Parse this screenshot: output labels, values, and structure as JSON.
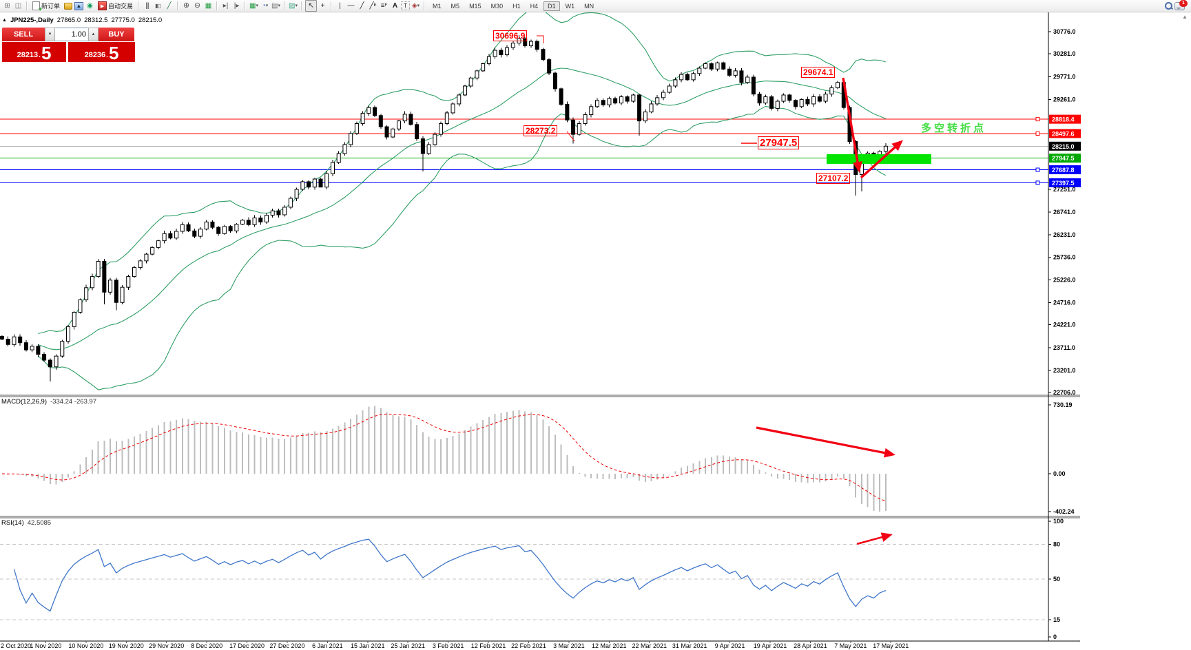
{
  "toolbar": {
    "new_order_label": "新订单",
    "auto_trading_label": "自动交易",
    "timeframes": [
      "M1",
      "M5",
      "M15",
      "M30",
      "H1",
      "H4",
      "D1",
      "W1",
      "MN"
    ],
    "active_timeframe": "D1",
    "notification_count": "1"
  },
  "symbol_header": {
    "symbol": "JPN225-,Daily",
    "open": "27865.0",
    "high": "28312.5",
    "low": "27775.0",
    "close": "28215.0"
  },
  "trade_panel": {
    "sell_label": "SELL",
    "buy_label": "BUY",
    "volume": "1.00",
    "sell_price_main": "28213",
    "sell_price_pip": "5",
    "buy_price_main": "28236",
    "buy_price_pip": "5",
    "decimal": "."
  },
  "annotations": {
    "peak": {
      "text": "30696.9"
    },
    "swing_high": {
      "text": "29674.1"
    },
    "pullback_low": {
      "text": "28273.2"
    },
    "support": {
      "text": "27947.5"
    },
    "crash_low": {
      "text": "27107.2"
    },
    "zone_text": {
      "text": "多空转折点",
      "color": "#44dd44"
    },
    "zone_band": {
      "color": "#00e400",
      "price_top": 28035,
      "price_bottom": 27820
    }
  },
  "macd": {
    "name": "MACD(12,26,9)",
    "values": "-334.24 -263.97",
    "axis_ticks": [
      {
        "label": "730.19",
        "value": 730.19
      },
      {
        "label": "0.00",
        "value": 0
      },
      {
        "label": "-402.24",
        "value": -402.24
      }
    ]
  },
  "rsi": {
    "name": "RSI(14)",
    "value": "42.5085",
    "axis_ticks": [
      {
        "label": "100",
        "value": 100
      },
      {
        "label": "80",
        "value": 80
      },
      {
        "label": "50",
        "value": 50
      },
      {
        "label": "15",
        "value": 15
      },
      {
        "label": "0",
        "value": 0
      }
    ],
    "level_lines": [
      80,
      50,
      15
    ]
  },
  "chart_data": {
    "type": "candlestick",
    "symbol": "JPN225-",
    "timeframe": "Daily",
    "ohlc_display": {
      "open": 27865.0,
      "high": 28312.5,
      "low": 27775.0,
      "close": 28215.0
    },
    "price_axis_ticks": [
      "30776.0",
      "30281.0",
      "29771.0",
      "29261.0",
      "27251.0",
      "26741.0",
      "26231.0",
      "25736.0",
      "25226.0",
      "24716.0",
      "24221.0",
      "23711.0",
      "23201.0",
      "22706.0"
    ],
    "levels": [
      {
        "value": 28818.4,
        "label": "28818.4",
        "line_color": "#ff0000",
        "badge_color": "#ff0000",
        "handle": true
      },
      {
        "value": 28497.6,
        "label": "28497.6",
        "line_color": "#ff0000",
        "badge_color": "#ff0000",
        "handle": true
      },
      {
        "value": 28215.0,
        "label": "28215.0",
        "line_color": "#b4b4b4",
        "badge_color": "#000000",
        "handle": false,
        "type": "current-price"
      },
      {
        "value": 27947.5,
        "label": "27947.5",
        "line_color": "#00a800",
        "badge_color": "#00a800",
        "handle": false
      },
      {
        "value": 27687.8,
        "label": "27687.8",
        "line_color": "#0000ff",
        "badge_color": "#0000ff",
        "handle": true
      },
      {
        "value": 27397.5,
        "label": "27397.5",
        "line_color": "#0000ff",
        "badge_color": "#0000ff",
        "handle": true
      }
    ],
    "date_labels": [
      "2 Oct 2020",
      "1 Nov 2020",
      "10 Nov 2020",
      "19 Nov 2020",
      "29 Nov 2020",
      "8 Dec 2020",
      "17 Dec 2020",
      "27 Dec 2020",
      "6 Jan 2021",
      "15 Jan 2021",
      "25 Jan 2021",
      "3 Feb 2021",
      "12 Feb 2021",
      "22 Feb 2021",
      "3 Mar 2021",
      "12 Mar 2021",
      "22 Mar 2021",
      "31 Mar 2021",
      "9 Apr 2021",
      "19 Apr 2021",
      "28 Apr 2021",
      "7 May 2021",
      "17 May 2021"
    ],
    "bollinger": {
      "period": 20,
      "deviation": 2,
      "color": "#2e9e64"
    },
    "closes": [
      23900,
      23780,
      23950,
      23820,
      23660,
      23740,
      23560,
      23430,
      23280,
      23520,
      23850,
      24180,
      24500,
      24780,
      25050,
      25300,
      25640,
      24950,
      25220,
      24720,
      25060,
      25300,
      25500,
      25650,
      25800,
      25950,
      26100,
      26260,
      26160,
      26310,
      26460,
      26320,
      26200,
      26360,
      26520,
      26400,
      26260,
      26420,
      26320,
      26470,
      26560,
      26460,
      26610,
      26520,
      26670,
      26770,
      26680,
      26850,
      27050,
      27250,
      27420,
      27300,
      27480,
      27300,
      27600,
      27850,
      28050,
      28250,
      28500,
      28720,
      28950,
      29080,
      28900,
      28650,
      28420,
      28600,
      28780,
      28930,
      28700,
      28380,
      28050,
      28250,
      28480,
      28720,
      28960,
      29160,
      29360,
      29560,
      29740,
      29900,
      30060,
      30220,
      30360,
      30260,
      30420,
      30520,
      30620,
      30460,
      30560,
      30380,
      30150,
      29850,
      29500,
      29150,
      28800,
      28480,
      28720,
      28920,
      29100,
      29240,
      29140,
      29280,
      29180,
      29320,
      29220,
      29360,
      28780,
      28980,
      29160,
      29300,
      29420,
      29560,
      29700,
      29820,
      29700,
      29840,
      29960,
      30060,
      29940,
      30080,
      29940,
      29800,
      29900,
      29640,
      29760,
      29380,
      29180,
      29320,
      29060,
      29220,
      29360,
      29240,
      29100,
      29260,
      29160,
      29320,
      29220,
      29380,
      29520,
      29640,
      29080,
      28320,
      27580,
      27900,
      28060,
      27860,
      28100,
      28215
    ],
    "extremes": {
      "8": {
        "low": 22950
      },
      "17": {
        "low": 24680
      },
      "19": {
        "low": 24550
      },
      "53": {
        "low": 27380
      },
      "70": {
        "low": 27650
      },
      "86": {
        "high": 30696.9
      },
      "95": {
        "low": 28273.2
      },
      "106": {
        "low": 28450
      },
      "139": {
        "high": 29674.1
      },
      "142": {
        "low": 27107.2
      },
      "143": {
        "low": 27200
      }
    }
  }
}
